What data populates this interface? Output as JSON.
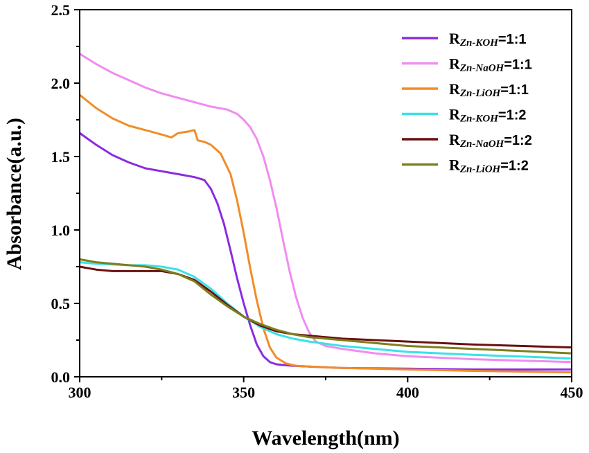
{
  "chart_data": {
    "type": "line",
    "xlabel": "Wavelength(nm)",
    "ylabel": "Absorbance(a.u.)",
    "xlim": [
      300,
      450
    ],
    "ylim": [
      0.0,
      2.5
    ],
    "xticks": [
      300,
      350,
      400,
      450
    ],
    "xtick_labels": [
      "300",
      "350",
      "400",
      "450"
    ],
    "yticks": [
      0.0,
      0.5,
      1.0,
      1.5,
      2.0,
      2.5
    ],
    "ytick_labels": [
      "0.0",
      "0.5",
      "1.0",
      "1.5",
      "2.0",
      "2.5"
    ],
    "grid": false,
    "legend_position": "top-right",
    "series": [
      {
        "name": "RZn-KOH=1:1",
        "legend_main": "R",
        "legend_sub": "Zn-KOH",
        "legend_ratio": "=1:1",
        "color": "#8B2BE2",
        "points": [
          [
            300,
            1.66
          ],
          [
            305,
            1.58
          ],
          [
            310,
            1.51
          ],
          [
            315,
            1.46
          ],
          [
            320,
            1.42
          ],
          [
            325,
            1.4
          ],
          [
            330,
            1.38
          ],
          [
            335,
            1.36
          ],
          [
            338,
            1.34
          ],
          [
            340,
            1.28
          ],
          [
            342,
            1.18
          ],
          [
            344,
            1.04
          ],
          [
            346,
            0.86
          ],
          [
            348,
            0.67
          ],
          [
            350,
            0.5
          ],
          [
            352,
            0.35
          ],
          [
            354,
            0.22
          ],
          [
            356,
            0.14
          ],
          [
            358,
            0.1
          ],
          [
            360,
            0.085
          ],
          [
            365,
            0.075
          ],
          [
            370,
            0.07
          ],
          [
            380,
            0.06
          ],
          [
            400,
            0.055
          ],
          [
            420,
            0.05
          ],
          [
            450,
            0.05
          ]
        ]
      },
      {
        "name": "RZn-NaOH=1:1",
        "legend_main": "R",
        "legend_sub": "Zn-NaOH",
        "legend_ratio": "=1:1",
        "color": "#F08CF0",
        "points": [
          [
            300,
            2.2
          ],
          [
            305,
            2.13
          ],
          [
            310,
            2.07
          ],
          [
            315,
            2.02
          ],
          [
            320,
            1.97
          ],
          [
            325,
            1.93
          ],
          [
            330,
            1.9
          ],
          [
            335,
            1.87
          ],
          [
            340,
            1.84
          ],
          [
            345,
            1.82
          ],
          [
            348,
            1.79
          ],
          [
            350,
            1.75
          ],
          [
            352,
            1.7
          ],
          [
            354,
            1.62
          ],
          [
            356,
            1.5
          ],
          [
            358,
            1.34
          ],
          [
            360,
            1.15
          ],
          [
            362,
            0.93
          ],
          [
            364,
            0.72
          ],
          [
            366,
            0.54
          ],
          [
            368,
            0.4
          ],
          [
            370,
            0.3
          ],
          [
            372,
            0.24
          ],
          [
            375,
            0.21
          ],
          [
            380,
            0.19
          ],
          [
            390,
            0.16
          ],
          [
            400,
            0.14
          ],
          [
            420,
            0.12
          ],
          [
            450,
            0.1
          ]
        ]
      },
      {
        "name": "RZn-LiOH=1:1",
        "legend_main": "R",
        "legend_sub": "Zn-LiOH",
        "legend_ratio": "=1:1",
        "color": "#F28C28",
        "points": [
          [
            300,
            1.92
          ],
          [
            305,
            1.83
          ],
          [
            310,
            1.76
          ],
          [
            315,
            1.71
          ],
          [
            320,
            1.68
          ],
          [
            325,
            1.65
          ],
          [
            328,
            1.63
          ],
          [
            330,
            1.66
          ],
          [
            333,
            1.67
          ],
          [
            335,
            1.68
          ],
          [
            336,
            1.61
          ],
          [
            338,
            1.6
          ],
          [
            340,
            1.58
          ],
          [
            343,
            1.52
          ],
          [
            346,
            1.38
          ],
          [
            348,
            1.2
          ],
          [
            350,
            0.98
          ],
          [
            352,
            0.74
          ],
          [
            354,
            0.52
          ],
          [
            356,
            0.33
          ],
          [
            358,
            0.2
          ],
          [
            360,
            0.13
          ],
          [
            363,
            0.09
          ],
          [
            366,
            0.075
          ],
          [
            370,
            0.07
          ],
          [
            380,
            0.06
          ],
          [
            400,
            0.05
          ],
          [
            420,
            0.04
          ],
          [
            450,
            0.03
          ]
        ]
      },
      {
        "name": "RZn-KOH=1:2",
        "legend_main": "R",
        "legend_sub": "Zn-KOH",
        "legend_ratio": "=1:2",
        "color": "#38E2E8",
        "points": [
          [
            300,
            0.78
          ],
          [
            305,
            0.77
          ],
          [
            310,
            0.765
          ],
          [
            315,
            0.76
          ],
          [
            320,
            0.76
          ],
          [
            325,
            0.75
          ],
          [
            330,
            0.73
          ],
          [
            335,
            0.68
          ],
          [
            340,
            0.6
          ],
          [
            345,
            0.5
          ],
          [
            350,
            0.41
          ],
          [
            355,
            0.34
          ],
          [
            360,
            0.29
          ],
          [
            365,
            0.26
          ],
          [
            370,
            0.24
          ],
          [
            380,
            0.21
          ],
          [
            390,
            0.19
          ],
          [
            400,
            0.17
          ],
          [
            420,
            0.15
          ],
          [
            450,
            0.125
          ]
        ]
      },
      {
        "name": "RZn-NaOH=1:2",
        "legend_main": "R",
        "legend_sub": "Zn-NaOH",
        "legend_ratio": "=1:2",
        "color": "#6B0F0F",
        "points": [
          [
            300,
            0.75
          ],
          [
            305,
            0.73
          ],
          [
            310,
            0.72
          ],
          [
            315,
            0.72
          ],
          [
            320,
            0.72
          ],
          [
            325,
            0.72
          ],
          [
            330,
            0.7
          ],
          [
            335,
            0.66
          ],
          [
            340,
            0.58
          ],
          [
            345,
            0.49
          ],
          [
            350,
            0.41
          ],
          [
            355,
            0.35
          ],
          [
            360,
            0.31
          ],
          [
            365,
            0.29
          ],
          [
            370,
            0.28
          ],
          [
            380,
            0.26
          ],
          [
            390,
            0.25
          ],
          [
            400,
            0.24
          ],
          [
            420,
            0.22
          ],
          [
            450,
            0.2
          ]
        ]
      },
      {
        "name": "RZn-LiOH=1:2",
        "legend_main": "R",
        "legend_sub": "Zn-LiOH",
        "legend_ratio": "=1:2",
        "color": "#7E7E1E",
        "points": [
          [
            300,
            0.8
          ],
          [
            305,
            0.78
          ],
          [
            310,
            0.77
          ],
          [
            315,
            0.76
          ],
          [
            320,
            0.75
          ],
          [
            325,
            0.73
          ],
          [
            330,
            0.7
          ],
          [
            335,
            0.65
          ],
          [
            340,
            0.56
          ],
          [
            345,
            0.48
          ],
          [
            350,
            0.41
          ],
          [
            355,
            0.36
          ],
          [
            360,
            0.32
          ],
          [
            365,
            0.29
          ],
          [
            370,
            0.27
          ],
          [
            380,
            0.25
          ],
          [
            390,
            0.23
          ],
          [
            400,
            0.21
          ],
          [
            420,
            0.19
          ],
          [
            450,
            0.16
          ]
        ]
      }
    ]
  }
}
